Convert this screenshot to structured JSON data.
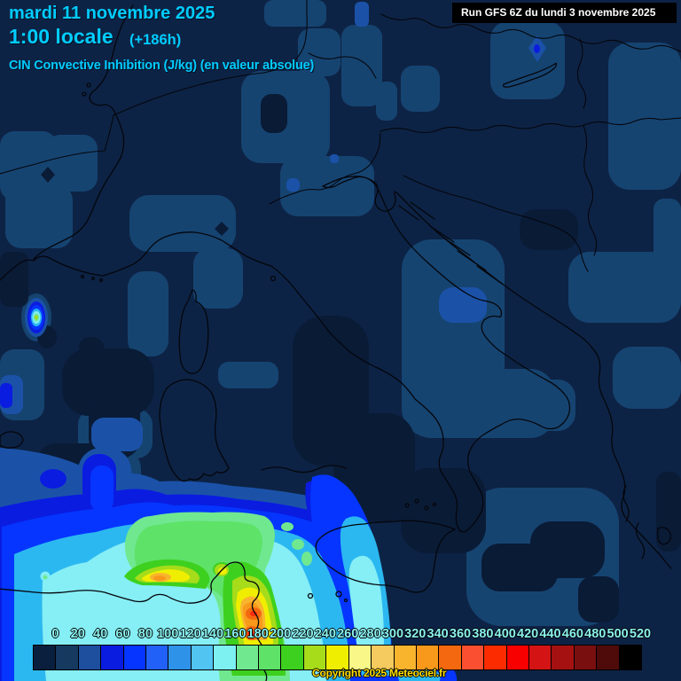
{
  "header": {
    "date": "mardi 11 novembre 2025",
    "time": "1:00 locale",
    "offset": "(+186h)",
    "parameter": "CIN Convective Inhibition (J/kg) (en valeur absolue)",
    "text_color": "#00ccff"
  },
  "run_box": {
    "text": "Run GFS 6Z du lundi 3 novembre 2025",
    "bg": "#000000",
    "text_color": "#ffffff"
  },
  "footer": {
    "copyright": "Copyright 2025 Meteociel.fr",
    "text_color": "#ffdf00"
  },
  "colorbar": {
    "tick_labels": [
      "0",
      "20",
      "40",
      "60",
      "80",
      "100",
      "120",
      "140",
      "160",
      "180",
      "200",
      "220",
      "240",
      "260",
      "280",
      "300",
      "320",
      "340",
      "360",
      "380",
      "400",
      "420",
      "440",
      "460",
      "480",
      "500",
      "520"
    ],
    "label_color": "#8af2f0",
    "colors": [
      "#0a1f3e",
      "#15395f",
      "#1e4f9e",
      "#0a1ce0",
      "#0535ff",
      "#2161f7",
      "#2e93e8",
      "#52c4f2",
      "#7df0f2",
      "#70e890",
      "#5ee268",
      "#3ed01e",
      "#a6dc1a",
      "#f0ee00",
      "#f8f788",
      "#f5ca5e",
      "#f9b42e",
      "#f9991c",
      "#f4680f",
      "#fa4f30",
      "#fc2c00",
      "#f90000",
      "#d41414",
      "#a51111",
      "#7a0f0f",
      "#4f0a0a",
      "#000000"
    ]
  },
  "map": {
    "palette": {
      "base": "#0d2345",
      "dark": "#0a1b36",
      "light": "#164471",
      "bright": "#1b52a8",
      "vivid": "#0a1ce0",
      "blue": "#0535ff",
      "cyan": "#2bb8f0",
      "pale_cyan": "#86eef5",
      "green_light": "#70e890",
      "green_mid": "#5ee268",
      "green": "#3ed01e",
      "yellow_green": "#a6dc1a",
      "yellow": "#f0ee00",
      "orange_light": "#f9b42e",
      "orange": "#f9991c",
      "red_orange": "#f4680f",
      "red": "#fa2c10",
      "coastline": "#04060c"
    }
  },
  "chart_data": {
    "type": "heatmap",
    "title": "CIN Convective Inhibition (J/kg) (en valeur absolue)",
    "model_run": "Run GFS 6Z du lundi 3 novembre 2025",
    "valid_time": "mardi 11 novembre 2025 1:00 locale (+186h)",
    "legend_values": [
      0,
      20,
      40,
      60,
      80,
      100,
      120,
      140,
      160,
      180,
      200,
      220,
      240,
      260,
      280,
      300,
      320,
      340,
      360,
      380,
      400,
      420,
      440,
      460,
      480,
      500,
      520
    ],
    "legend_colors": [
      "#0a1f3e",
      "#15395f",
      "#1e4f9e",
      "#0a1ce0",
      "#0535ff",
      "#2161f7",
      "#2e93e8",
      "#52c4f2",
      "#7df0f2",
      "#70e890",
      "#5ee268",
      "#3ed01e",
      "#a6dc1a",
      "#f0ee00",
      "#f8f788",
      "#f5ca5e",
      "#f9b42e",
      "#f9991c",
      "#f4680f",
      "#fa4f30",
      "#fc2c00",
      "#f90000",
      "#d41414",
      "#a51111",
      "#7a0f0f",
      "#4f0a0a",
      "#000000"
    ],
    "notable_maxima": [
      {
        "location": "Tunisian coast plume",
        "approx_value_jkg": 360
      },
      {
        "location": "Algerian coast near 170,650 px",
        "approx_value_jkg": 320
      },
      {
        "location": "Gulf of Lion small cell",
        "approx_value_jkg": 220
      }
    ]
  }
}
